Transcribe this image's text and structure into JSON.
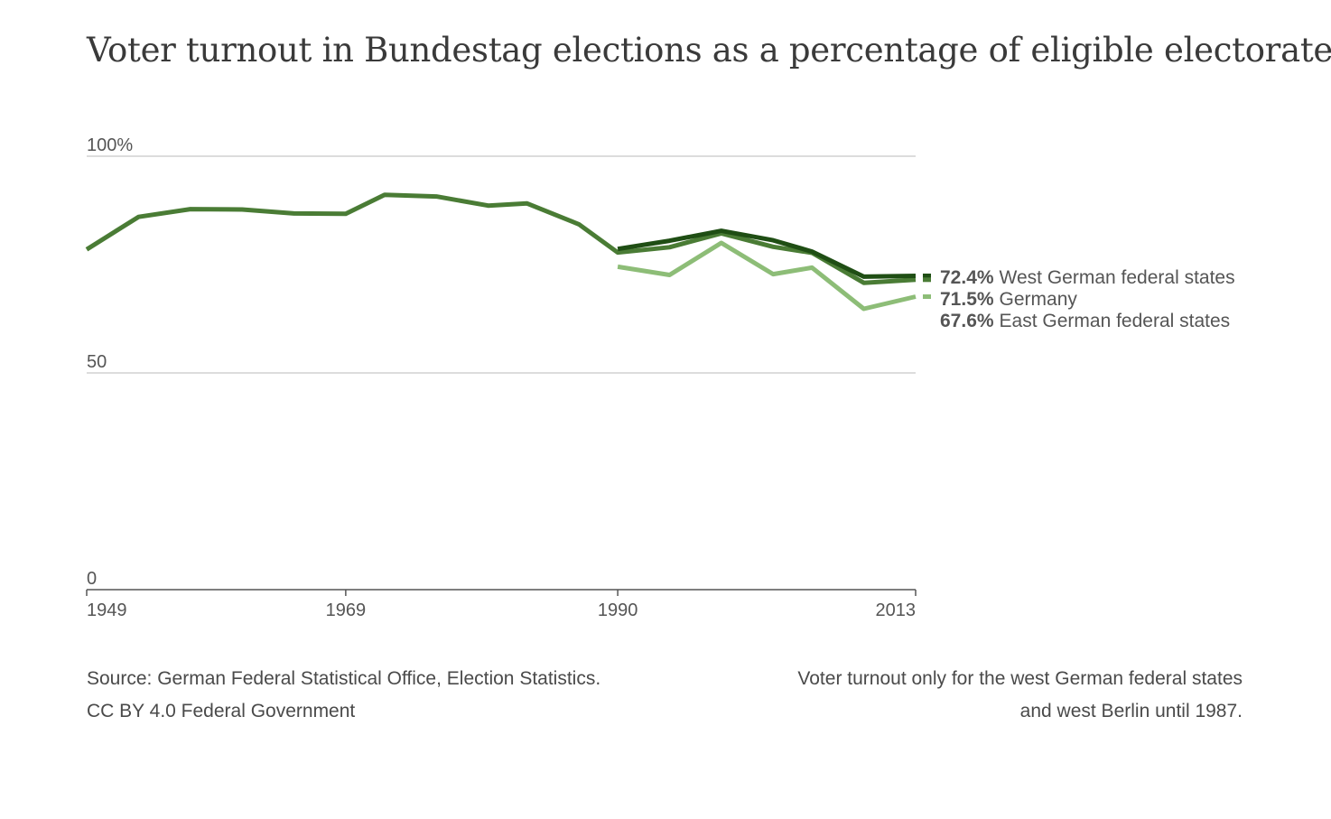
{
  "chart_data": {
    "type": "line",
    "title": "Voter turnout in Bundestag elections as a percentage of eligible electorate",
    "ylim": [
      0,
      100
    ],
    "y_ticks": [
      {
        "value": 100,
        "label": "100%"
      },
      {
        "value": 50,
        "label": "50"
      },
      {
        "value": 0,
        "label": "0"
      }
    ],
    "xlim": [
      1949,
      2013
    ],
    "x_ticks": [
      {
        "value": 1949,
        "label": "1949"
      },
      {
        "value": 1969,
        "label": "1969"
      },
      {
        "value": 1990,
        "label": "1990"
      },
      {
        "value": 2013,
        "label": "2013"
      }
    ],
    "grid": true,
    "legend_placement": "right, at line ends",
    "series": [
      {
        "key": "west",
        "name": "West German federal states",
        "end_label": "72.4%",
        "color": "#1f4e14",
        "points": [
          [
            1990,
            78.6
          ],
          [
            1994,
            80.5
          ],
          [
            1998,
            82.8
          ],
          [
            2002,
            80.6
          ],
          [
            2005,
            78.0
          ],
          [
            2009,
            72.2
          ],
          [
            2013,
            72.4
          ]
        ]
      },
      {
        "key": "germany",
        "name": "Germany",
        "end_label": "71.5%",
        "color": "#4a7c35",
        "points": [
          [
            1949,
            78.5
          ],
          [
            1953,
            86.0
          ],
          [
            1957,
            87.8
          ],
          [
            1961,
            87.7
          ],
          [
            1965,
            86.8
          ],
          [
            1969,
            86.7
          ],
          [
            1972,
            91.1
          ],
          [
            1976,
            90.7
          ],
          [
            1980,
            88.6
          ],
          [
            1983,
            89.1
          ],
          [
            1987,
            84.3
          ],
          [
            1990,
            77.8
          ],
          [
            1994,
            79.0
          ],
          [
            1998,
            82.2
          ],
          [
            2002,
            79.1
          ],
          [
            2005,
            77.7
          ],
          [
            2009,
            70.8
          ],
          [
            2013,
            71.5
          ]
        ]
      },
      {
        "key": "east",
        "name": "East German federal states",
        "end_label": "67.6%",
        "color": "#8dbd77",
        "points": [
          [
            1990,
            74.5
          ],
          [
            1994,
            72.6
          ],
          [
            1998,
            80.0
          ],
          [
            2002,
            72.8
          ],
          [
            2005,
            74.3
          ],
          [
            2009,
            64.8
          ],
          [
            2013,
            67.6
          ]
        ]
      }
    ]
  },
  "footer": {
    "source_line1": "Source: German Federal Statistical Office, Election Statistics.",
    "source_line2": "CC BY 4.0 Federal Government",
    "note_line1": "Voter turnout only for the west German federal states",
    "note_line2": "and west Berlin until 1987."
  }
}
